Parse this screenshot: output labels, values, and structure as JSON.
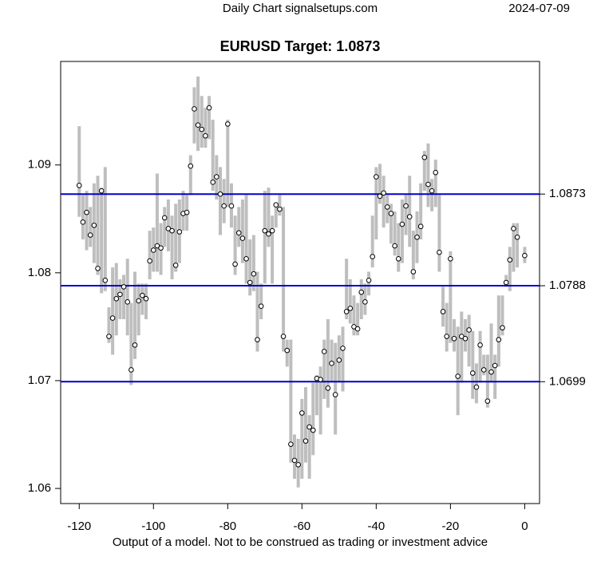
{
  "chart_data": {
    "type": "range",
    "header_left": "Daily Chart signalsetups.com",
    "header_right": "2024-07-09",
    "title": "EURUSD Target: 1.0873",
    "x_label": "Output of a model. Not to be construed as trading or investment advice",
    "x": [
      -120,
      -119,
      -118,
      -117,
      -116,
      -115,
      -114,
      -113,
      -112,
      -111,
      -110,
      -109,
      -108,
      -107,
      -106,
      -105,
      -104,
      -103,
      -102,
      -101,
      -100,
      -99,
      -98,
      -97,
      -96,
      -95,
      -94,
      -93,
      -92,
      -91,
      -90,
      -89,
      -88,
      -87,
      -86,
      -85,
      -84,
      -83,
      -82,
      -81,
      -80,
      -79,
      -78,
      -77,
      -76,
      -75,
      -74,
      -73,
      -72,
      -71,
      -70,
      -69,
      -68,
      -67,
      -66,
      -65,
      -64,
      -63,
      -62,
      -61,
      -60,
      -59,
      -58,
      -57,
      -56,
      -55,
      -54,
      -53,
      -52,
      -51,
      -50,
      -49,
      -48,
      -47,
      -46,
      -45,
      -44,
      -43,
      -42,
      -41,
      -40,
      -39,
      -38,
      -37,
      -36,
      -35,
      -34,
      -33,
      -32,
      -31,
      -30,
      -29,
      -28,
      -27,
      -26,
      -25,
      -24,
      -23,
      -22,
      -21,
      -20,
      -19,
      -18,
      -17,
      -16,
      -15,
      -14,
      -13,
      -12,
      -11,
      -10,
      -9,
      -8,
      -7,
      -6,
      -5,
      -4,
      -3,
      -2,
      0
    ],
    "values": [
      1.0881,
      1.0847,
      1.0856,
      1.0835,
      1.0844,
      1.0804,
      1.0876,
      1.0793,
      1.0741,
      1.0758,
      1.0776,
      1.078,
      1.0787,
      1.0773,
      1.071,
      1.0733,
      1.0774,
      1.0779,
      1.0776,
      1.0811,
      1.0821,
      1.0825,
      1.0823,
      1.0851,
      1.0841,
      1.0839,
      1.0807,
      1.0838,
      1.0855,
      1.0856,
      1.0899,
      1.0952,
      1.0937,
      1.0933,
      1.0927,
      1.0953,
      1.0884,
      1.0889,
      1.0873,
      1.0862,
      1.0938,
      1.0862,
      1.0808,
      1.0837,
      1.0832,
      1.0813,
      1.0791,
      1.0799,
      1.0738,
      1.0769,
      1.0839,
      1.0836,
      1.0839,
      1.0863,
      1.0859,
      1.0741,
      1.0728,
      1.0641,
      1.0626,
      1.0622,
      1.067,
      1.0644,
      1.0657,
      1.0654,
      1.0702,
      1.0701,
      1.0727,
      1.0693,
      1.0716,
      1.0687,
      1.0719,
      1.073,
      1.0764,
      1.0767,
      1.075,
      1.0748,
      1.0782,
      1.0773,
      1.0793,
      1.0815,
      1.0889,
      1.0871,
      1.0874,
      1.0861,
      1.0855,
      1.0825,
      1.0813,
      1.0845,
      1.0862,
      1.0852,
      1.0801,
      1.0833,
      1.0843,
      1.0907,
      1.0882,
      1.0876,
      1.0893,
      1.0819,
      1.0764,
      1.0741,
      1.0813,
      1.0739,
      1.0704,
      1.0741,
      1.0739,
      1.0747,
      1.0707,
      1.0694,
      1.0733,
      1.071,
      1.0681,
      1.0708,
      1.0714,
      1.0738,
      1.0749,
      1.0791,
      1.0812,
      1.0841,
      1.0833,
      1.0816
    ],
    "high": [
      1.0936,
      1.0872,
      1.0876,
      1.0861,
      1.0883,
      1.089,
      1.0879,
      1.0898,
      1.0768,
      1.0805,
      1.0809,
      1.0794,
      1.0798,
      1.0813,
      1.0772,
      1.0801,
      1.079,
      1.079,
      1.079,
      1.0839,
      1.0842,
      1.0892,
      1.0846,
      1.0861,
      1.0868,
      1.0853,
      1.0864,
      1.0868,
      1.0876,
      1.0872,
      1.0909,
      1.0972,
      1.0982,
      1.0964,
      1.0953,
      1.0964,
      1.0942,
      1.0909,
      1.0898,
      1.0887,
      1.0942,
      1.0883,
      1.0853,
      1.0861,
      1.0868,
      1.0872,
      1.0831,
      1.0835,
      1.0801,
      1.079,
      1.0876,
      1.0879,
      1.0853,
      1.0864,
      1.0872,
      1.0861,
      1.0738,
      1.0738,
      1.065,
      1.0646,
      1.0683,
      1.0694,
      1.0668,
      1.0698,
      1.0705,
      1.0713,
      1.0738,
      1.0757,
      1.0738,
      1.0735,
      1.0742,
      1.075,
      1.0813,
      1.0794,
      1.0779,
      1.0772,
      1.0794,
      1.079,
      1.0801,
      1.0853,
      1.0898,
      1.0901,
      1.089,
      1.0872,
      1.0864,
      1.0857,
      1.0846,
      1.0868,
      1.0872,
      1.089,
      1.0839,
      1.0857,
      1.0883,
      1.0913,
      1.092,
      1.0887,
      1.0905,
      1.0872,
      1.0787,
      1.0772,
      1.082,
      1.0757,
      1.075,
      1.0764,
      1.0757,
      1.0761,
      1.0746,
      1.0716,
      1.0746,
      1.0724,
      1.0724,
      1.0753,
      1.0724,
      1.0779,
      1.0779,
      1.0798,
      1.0824,
      1.0846,
      1.0846,
      1.0824
    ],
    "low": [
      1.0852,
      1.0831,
      1.0821,
      1.0824,
      1.0809,
      1.0798,
      1.0781,
      1.0783,
      1.0735,
      1.0724,
      1.0742,
      1.0757,
      1.0757,
      1.0742,
      1.0696,
      1.072,
      1.0742,
      1.0761,
      1.0757,
      1.0794,
      1.0801,
      1.0801,
      1.0798,
      1.0824,
      1.082,
      1.0794,
      1.0801,
      1.0809,
      1.0839,
      1.0839,
      1.0872,
      1.092,
      1.0913,
      1.0916,
      1.0916,
      1.0924,
      1.0876,
      1.0868,
      1.0835,
      1.0846,
      1.0861,
      1.0842,
      1.0798,
      1.0824,
      1.0809,
      1.079,
      1.0779,
      1.0783,
      1.0727,
      1.0757,
      1.079,
      1.0824,
      1.079,
      1.0842,
      1.0853,
      1.0727,
      1.0713,
      1.0624,
      1.0609,
      1.0601,
      1.0609,
      1.0624,
      1.0609,
      1.0631,
      1.0668,
      1.065,
      1.0683,
      1.0675,
      1.0698,
      1.065,
      1.0698,
      1.069,
      1.0757,
      1.0753,
      1.0742,
      1.0742,
      1.0757,
      1.0761,
      1.0779,
      1.0805,
      1.0831,
      1.0864,
      1.0842,
      1.0846,
      1.0827,
      1.0816,
      1.0801,
      1.0809,
      1.0835,
      1.0824,
      1.0794,
      1.0809,
      1.0831,
      1.0876,
      1.0861,
      1.0857,
      1.0861,
      1.0801,
      1.075,
      1.0727,
      1.0735,
      1.0727,
      1.0668,
      1.0698,
      1.0727,
      1.0713,
      1.0683,
      1.0679,
      1.0698,
      1.0705,
      1.0675,
      1.0698,
      1.0683,
      1.0713,
      1.0742,
      1.0787,
      1.0783,
      1.0801,
      1.0805,
      1.0809
    ],
    "range_color": "#bebebe",
    "point_color": "#000000",
    "line_color": "#0000cd",
    "xlim": [
      -125,
      4
    ],
    "ylim": [
      1.0586,
      1.0996
    ],
    "y2lim": [
      1.0586,
      1.0996
    ],
    "xticks": [
      -120,
      -100,
      -80,
      -60,
      -40,
      -20,
      0
    ],
    "yticks": [
      1.06,
      1.07,
      1.08,
      1.09
    ],
    "y2ticks": [
      1.0873,
      1.0788,
      1.0699
    ]
  }
}
